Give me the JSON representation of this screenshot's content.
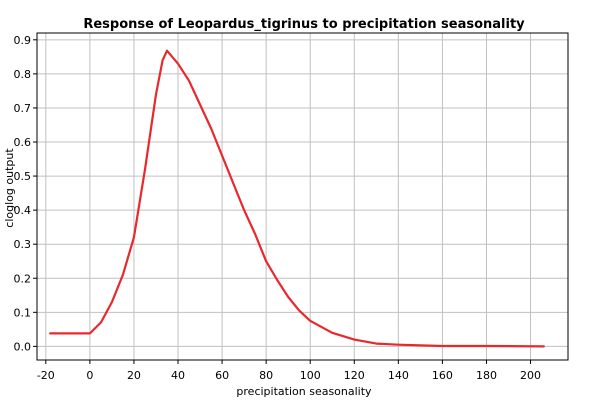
{
  "chart_data": {
    "type": "line",
    "title": "Response of Leopardus_tigrinus to precipitation seasonality",
    "xlabel": "precipitation seasonality",
    "ylabel": "cloglog output",
    "xlim": [
      -24,
      217
    ],
    "ylim": [
      -0.04,
      0.92
    ],
    "xticks": [
      -20,
      0,
      20,
      40,
      60,
      80,
      100,
      120,
      140,
      160,
      180,
      200
    ],
    "xtick_labels": [
      "-20",
      "0",
      "20",
      "40",
      "60",
      "80",
      "100",
      "120",
      "140",
      "160",
      "180",
      "200"
    ],
    "yticks": [
      0.0,
      0.1,
      0.2,
      0.3,
      0.4,
      0.5,
      0.6,
      0.7,
      0.8,
      0.9
    ],
    "ytick_labels": [
      "0.0",
      "0.1",
      "0.2",
      "0.3",
      "0.4",
      "0.5",
      "0.6",
      "0.7",
      "0.8",
      "0.9"
    ],
    "grid": true,
    "series": [
      {
        "color": "#e8282d",
        "x": [
          -18,
          -10,
          0,
          5,
          10,
          15,
          20,
          25,
          30,
          33,
          35,
          40,
          45,
          50,
          55,
          60,
          65,
          70,
          75,
          80,
          85,
          90,
          95,
          100,
          110,
          120,
          130,
          140,
          150,
          160,
          180,
          206
        ],
        "y": [
          0.038,
          0.038,
          0.038,
          0.07,
          0.13,
          0.21,
          0.32,
          0.52,
          0.74,
          0.84,
          0.868,
          0.83,
          0.78,
          0.71,
          0.64,
          0.56,
          0.48,
          0.4,
          0.33,
          0.25,
          0.195,
          0.145,
          0.105,
          0.075,
          0.04,
          0.02,
          0.008,
          0.005,
          0.003,
          0.001,
          0.001,
          0.0
        ]
      }
    ]
  }
}
